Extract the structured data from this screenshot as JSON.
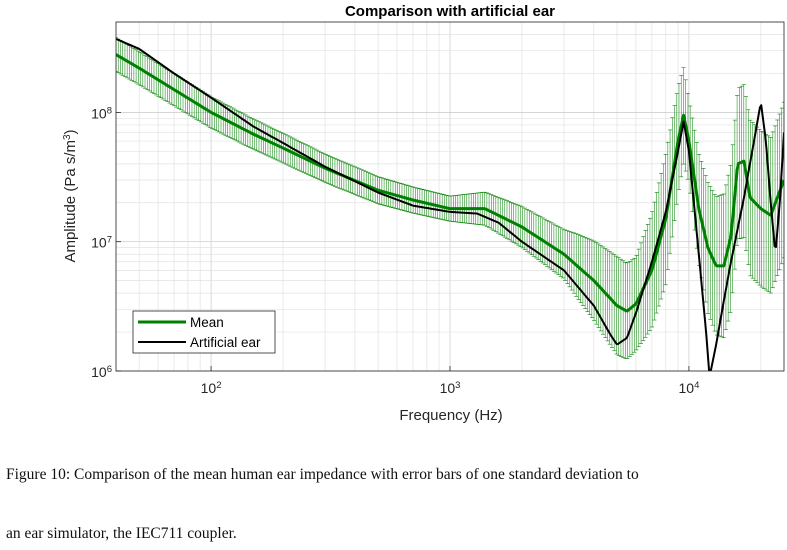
{
  "figure": {
    "caption_line_1": "Figure 10: Comparison of the mean human ear impedance with error bars of one standard deviation to",
    "caption_line_2": "an ear simulator, the IEC711 coupler."
  },
  "chart_data": {
    "type": "line",
    "title": "Comparison with artificial ear",
    "xlabel": "Frequency (Hz)",
    "ylabel_main": "Amplitude (Pa s/m",
    "ylabel_sup": "3",
    "ylabel_tail": ")",
    "x_scale": "log",
    "y_scale": "log",
    "xlim": [
      40,
      25000
    ],
    "ylim": [
      1000000,
      500000000
    ],
    "x_ticks": [
      {
        "value": 100,
        "base": "10",
        "exp": "2"
      },
      {
        "value": 1000,
        "base": "10",
        "exp": "3"
      },
      {
        "value": 10000,
        "base": "10",
        "exp": "4"
      }
    ],
    "y_ticks": [
      {
        "value": 1000000,
        "base": "10",
        "exp": "6"
      },
      {
        "value": 10000000,
        "base": "10",
        "exp": "7"
      },
      {
        "value": 100000000,
        "base": "10",
        "exp": "8"
      }
    ],
    "grid": true,
    "legend_position": "bottom-left",
    "series": [
      {
        "name": "Mean",
        "color": "#008000",
        "error_bars": "one standard deviation",
        "points": [
          [
            40,
            280000000
          ],
          [
            50,
            220000000
          ],
          [
            70,
            150000000
          ],
          [
            100,
            100000000
          ],
          [
            150,
            68000000
          ],
          [
            200,
            53000000
          ],
          [
            300,
            37000000
          ],
          [
            500,
            25000000
          ],
          [
            700,
            21000000
          ],
          [
            1000,
            18000000
          ],
          [
            1400,
            18000000
          ],
          [
            2000,
            13000000
          ],
          [
            3000,
            8000000
          ],
          [
            4000,
            5000000
          ],
          [
            5000,
            3200000
          ],
          [
            5500,
            2900000
          ],
          [
            6000,
            3300000
          ],
          [
            7000,
            6000000
          ],
          [
            8000,
            15000000
          ],
          [
            9000,
            60000000
          ],
          [
            9500,
            95000000
          ],
          [
            10000,
            60000000
          ],
          [
            11000,
            18000000
          ],
          [
            12000,
            9000000
          ],
          [
            13000,
            6500000
          ],
          [
            14000,
            6500000
          ],
          [
            15000,
            11000000
          ],
          [
            16000,
            40000000
          ],
          [
            17000,
            42000000
          ],
          [
            18000,
            22000000
          ],
          [
            20000,
            18000000
          ],
          [
            22000,
            16000000
          ],
          [
            25000,
            30000000
          ]
        ],
        "std_factor": [
          [
            40,
            1.35
          ],
          [
            1000,
            1.25
          ],
          [
            3000,
            1.55
          ],
          [
            5000,
            2.4
          ],
          [
            6000,
            2.3
          ],
          [
            8000,
            3.2
          ],
          [
            10000,
            2.1
          ],
          [
            12000,
            3.2
          ],
          [
            14000,
            3.6
          ],
          [
            18000,
            4.0
          ],
          [
            25000,
            4.0
          ]
        ]
      },
      {
        "name": "Artificial ear",
        "color": "#000000",
        "points": [
          [
            40,
            370000000
          ],
          [
            50,
            310000000
          ],
          [
            70,
            200000000
          ],
          [
            100,
            130000000
          ],
          [
            150,
            78000000
          ],
          [
            200,
            58000000
          ],
          [
            300,
            38000000
          ],
          [
            500,
            24000000
          ],
          [
            700,
            19000000
          ],
          [
            1000,
            17000000
          ],
          [
            1300,
            16500000
          ],
          [
            1600,
            14000000
          ],
          [
            2000,
            10000000
          ],
          [
            3000,
            6000000
          ],
          [
            4000,
            3200000
          ],
          [
            4700,
            1900000
          ],
          [
            5000,
            1600000
          ],
          [
            5500,
            1800000
          ],
          [
            6000,
            2800000
          ],
          [
            7000,
            7000000
          ],
          [
            8000,
            17000000
          ],
          [
            9000,
            50000000
          ],
          [
            9500,
            85000000
          ],
          [
            10000,
            50000000
          ],
          [
            11000,
            8000000
          ],
          [
            11800,
            2000000
          ],
          [
            12200,
            900000
          ],
          [
            13000,
            1600000
          ],
          [
            14000,
            3500000
          ],
          [
            15000,
            7000000
          ],
          [
            17000,
            22000000
          ],
          [
            19000,
            70000000
          ],
          [
            20000,
            120000000
          ],
          [
            21000,
            60000000
          ],
          [
            22000,
            20000000
          ],
          [
            23000,
            8000000
          ],
          [
            24000,
            20000000
          ],
          [
            25000,
            70000000
          ]
        ]
      }
    ]
  }
}
